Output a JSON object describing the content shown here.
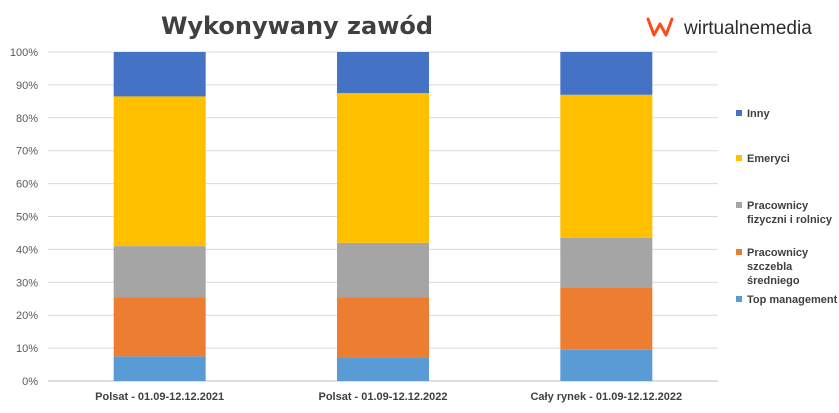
{
  "brand": {
    "name": "wirtualnemedia",
    "accent": "#ff4a1c"
  },
  "chart_data": {
    "type": "bar",
    "stacked": true,
    "title": "Wykonywany zawód",
    "categories": [
      "Polsat - 01.09-12.12.2021",
      "Polsat - 01.09-12.12.2022",
      "Cały rynek - 01.09-12.12.2022"
    ],
    "ylim": [
      0,
      100
    ],
    "yticks": [
      "0%",
      "10%",
      "20%",
      "30%",
      "40%",
      "50%",
      "60%",
      "70%",
      "80%",
      "90%",
      "100%"
    ],
    "grid": true,
    "legend": "right",
    "series": [
      {
        "name": "Top management",
        "color": "#5b9bd5",
        "values": [
          7.5,
          7,
          9.5
        ]
      },
      {
        "name": "Pracownicy szczebla średniego",
        "color": "#ed7d31",
        "values": [
          18,
          18.5,
          19
        ]
      },
      {
        "name": "Pracownicy fizyczni i rolnicy",
        "color": "#a5a5a5",
        "values": [
          15.5,
          16.5,
          15
        ]
      },
      {
        "name": "Emeryci",
        "color": "#ffc000",
        "values": [
          45.5,
          45.5,
          43.5
        ]
      },
      {
        "name": "Inny",
        "color": "#4472c4",
        "values": [
          13.5,
          12.5,
          13
        ]
      }
    ]
  }
}
